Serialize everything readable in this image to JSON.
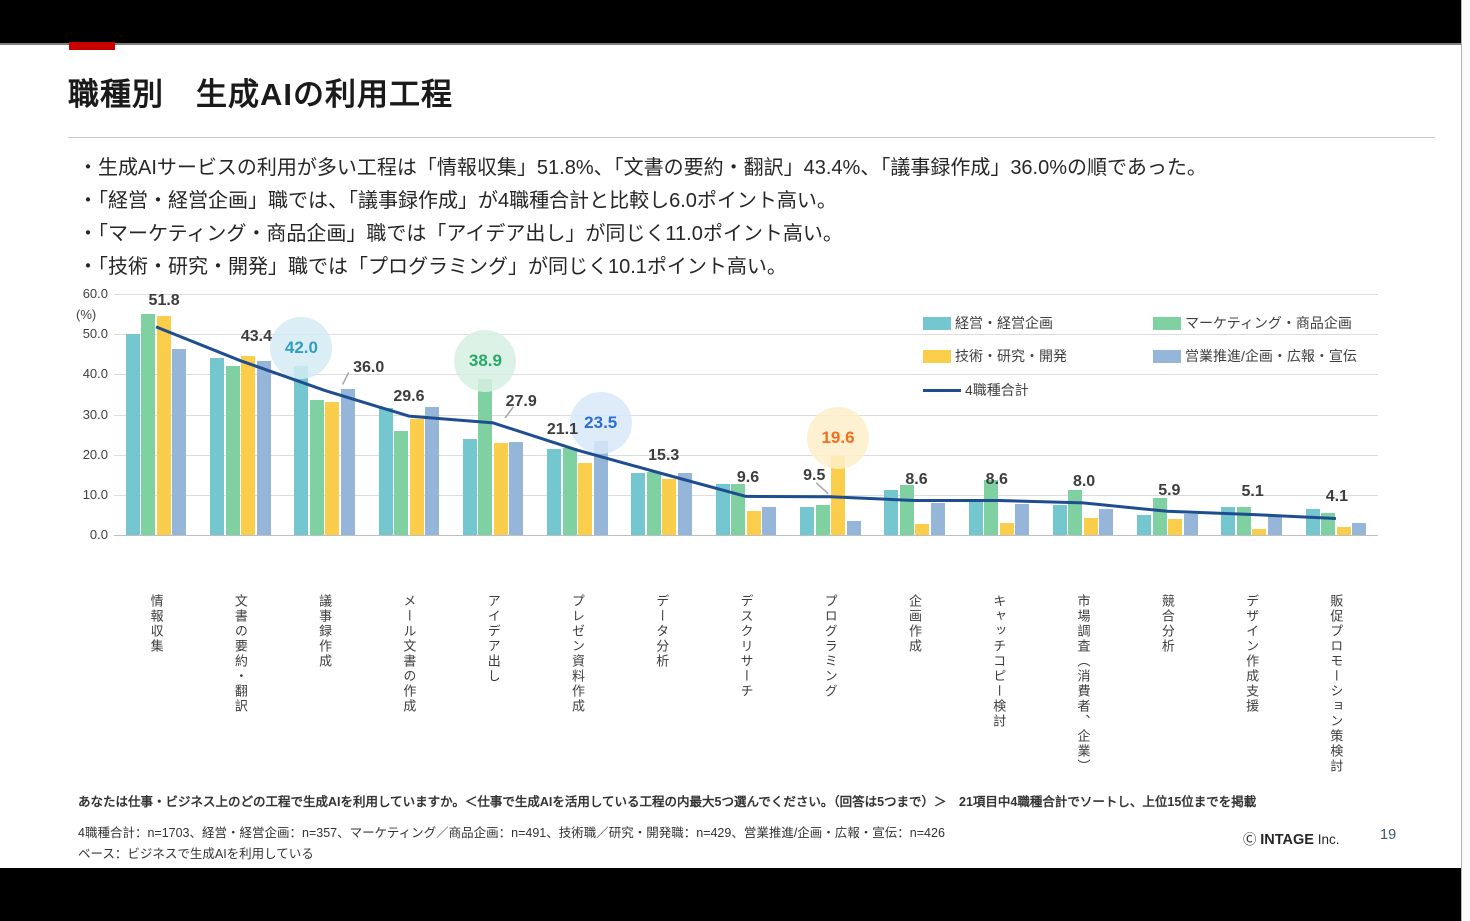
{
  "slide": {
    "title": "職種別　生成AIの利用工程",
    "bullets": [
      "・生成AIサービスの利用が多い工程は「情報収集」51.8%、「文書の要約・翻訳」43.4%、「議事録作成」36.0%の順であった。",
      "・「経営・経営企画」職では、「議事録作成」が4職種合計と比較し6.0ポイント高い。",
      "・「マーケティング・商品企画」職では「アイデア出し」が同じく11.0ポイント高い。",
      "・「技術・研究・開発」職では「プログラミング」が同じく10.1ポイント高い。"
    ],
    "footnote_question": "あなたは仕事・ビジネス上のどの工程で生成AIを利用していますか。＜仕事で生成AIを活用している工程の内最大5つ選んでください。（回答は5つまで）＞　21項目中4職種合計でソートし、上位15位までを掲載",
    "footnote_sample": "4職種合計：n=1703、経営・経営企画：n=357、マーケティング／商品企画：n=491、技術職／研究・開発職：n=429、営業推進/企画・広報・宣伝：n=426",
    "footnote_base": "ベース：ビジネスで生成AIを利用している",
    "copyright_mark": "Ⓒ",
    "copyright_brand": "INTAGE",
    "copyright_suffix": "Inc.",
    "page_number": "19"
  },
  "chart_data": {
    "type": "bar",
    "unit_label": "(%)",
    "categories": [
      "情報収集",
      "文書の要約・翻訳",
      "議事録作成",
      "メール文書の作成",
      "アイデア出し",
      "プレゼン資料作成",
      "データ分析",
      "デスクリサーチ",
      "プログラミング",
      "企画作成",
      "キャッチコピー検討",
      "市場調査（消費者、企業）",
      "競合分析",
      "デザイン作成支援",
      "販促プロモーション策検討"
    ],
    "series": [
      {
        "name": "経営・経営企画",
        "color": "#74C6CF",
        "values": [
          50.1,
          44.0,
          42.0,
          31.7,
          24.0,
          21.3,
          15.4,
          12.7,
          6.9,
          11.2,
          8.3,
          7.5,
          5.0,
          7.0,
          6.4
        ]
      },
      {
        "name": "マーケティング・商品企画",
        "color": "#7FD1A1",
        "values": [
          55.0,
          42.0,
          33.5,
          25.9,
          38.9,
          21.7,
          15.8,
          12.6,
          7.5,
          12.4,
          13.7,
          11.2,
          9.2,
          6.9,
          5.5
        ]
      },
      {
        "name": "技術・研究・開発",
        "color": "#FACD4B",
        "values": [
          54.5,
          44.5,
          33.2,
          29.0,
          22.9,
          17.9,
          13.9,
          5.9,
          19.6,
          2.7,
          2.9,
          4.3,
          3.9,
          1.5,
          2.1
        ]
      },
      {
        "name": "営業推進/企画・広報・宣伝",
        "color": "#95B6D9",
        "values": [
          46.4,
          43.3,
          36.3,
          31.8,
          23.2,
          23.5,
          15.5,
          6.9,
          3.6,
          7.9,
          7.7,
          6.4,
          5.2,
          5.0,
          3.1
        ]
      }
    ],
    "line_series": {
      "name": "4職種合計",
      "color": "#1E4E8F",
      "values": [
        51.8,
        43.4,
        36.0,
        29.6,
        27.9,
        21.1,
        15.3,
        9.6,
        9.5,
        8.6,
        8.6,
        8.0,
        5.9,
        5.1,
        4.1
      ]
    },
    "line_labels": [
      "51.8",
      "43.4",
      "36.0",
      "29.6",
      "27.9",
      "21.1",
      "15.3",
      "9.6",
      "9.5",
      "8.6",
      "8.6",
      "8.0",
      "5.9",
      "5.1",
      "4.1"
    ],
    "highlights": [
      {
        "category": 2,
        "series": 0,
        "label": "42.0",
        "bg": "rgba(213,235,243,0.85)",
        "fg": "#2F9EC0"
      },
      {
        "category": 4,
        "series": 1,
        "label": "38.9",
        "bg": "rgba(215,240,226,0.85)",
        "fg": "#27A96A"
      },
      {
        "category": 5,
        "series": 3,
        "label": "23.5",
        "bg": "rgba(216,231,248,0.85)",
        "fg": "#2B6FD4"
      },
      {
        "category": 8,
        "series": 2,
        "label": "19.6",
        "bg": "rgba(253,238,201,0.85)",
        "fg": "#F0701F"
      }
    ],
    "y_axis": {
      "ticks": [
        "60.0",
        "50.0",
        "40.0",
        "30.0",
        "20.0",
        "10.0",
        "0.0"
      ],
      "max": 60,
      "grid": true
    },
    "legend_position": "top-right"
  }
}
